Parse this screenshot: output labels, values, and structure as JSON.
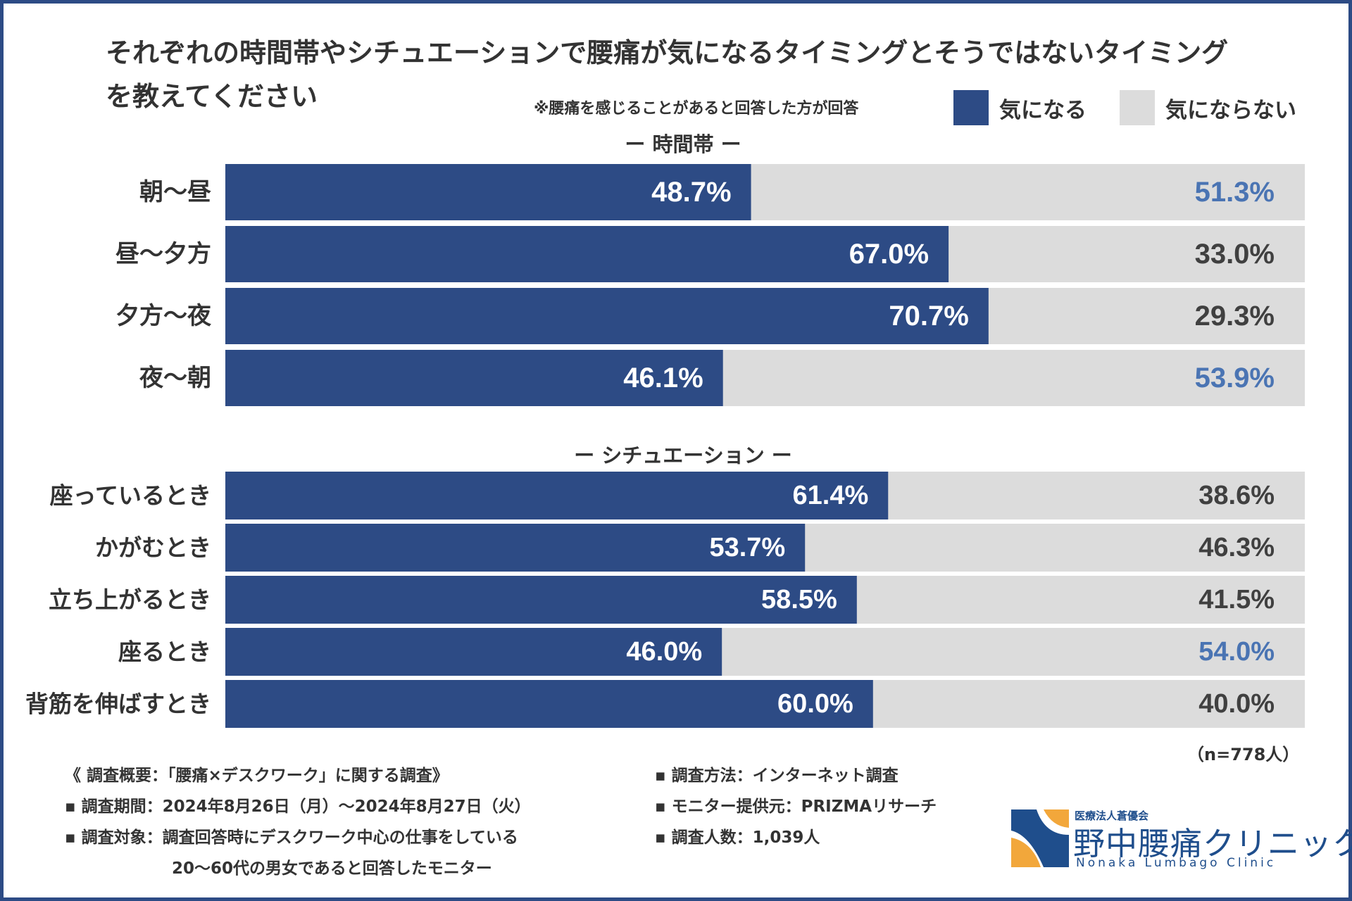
{
  "title": "それぞれの時間帯やシチュエーションで腰痛が気になるタイミングとそうではないタイミングを教えてください",
  "note": "※腰痛を感じることがあると回答した方が回答",
  "legend": [
    {
      "label": "気になる",
      "color": "#2d4b85"
    },
    {
      "label": "気にならない",
      "color": "#dcdcdc"
    }
  ],
  "colors": {
    "primary": "#2d4b85",
    "secondary": "#dcdcdc",
    "label_white": "#ffffff",
    "label_dark": "#404040",
    "label_highlight": "#4a74b3"
  },
  "chart_data": [
    {
      "type": "bar",
      "orientation": "horizontal",
      "stacked": true,
      "section": "ー 時間帯 ー",
      "categories": [
        "朝〜昼",
        "昼〜夕方",
        "夕方〜夜",
        "夜〜朝"
      ],
      "series": [
        {
          "name": "気になる",
          "values": [
            48.7,
            67.0,
            70.7,
            46.1
          ],
          "labels": [
            "48.7%",
            "67.0%",
            "70.7%",
            "46.1%"
          ]
        },
        {
          "name": "気にならない",
          "values": [
            51.3,
            33.0,
            29.3,
            53.9
          ],
          "labels": [
            "51.3%",
            "33.0%",
            "29.3%",
            "53.9%"
          ]
        }
      ],
      "xlim": [
        0,
        100
      ]
    },
    {
      "type": "bar",
      "orientation": "horizontal",
      "stacked": true,
      "section": "ー シチュエーション ー",
      "categories": [
        "座っているとき",
        "かがむとき",
        "立ち上がるとき",
        "座るとき",
        "背筋を伸ばすとき"
      ],
      "series": [
        {
          "name": "気になる",
          "values": [
            61.4,
            53.7,
            58.5,
            46.0,
            60.0
          ],
          "labels": [
            "61.4%",
            "53.7%",
            "58.5%",
            "46.0%",
            "60.0%"
          ]
        },
        {
          "name": "気にならない",
          "values": [
            38.6,
            46.3,
            41.5,
            54.0,
            40.0
          ],
          "labels": [
            "38.6%",
            "46.3%",
            "41.5%",
            "54.0%",
            "40.0%"
          ]
        }
      ],
      "xlim": [
        0,
        100
      ]
    }
  ],
  "sample_note": "（n=778人）",
  "footer": {
    "left": [
      "《 調査概要：「腰痛×デスクワーク」に関する調査》",
      "▪ 調査期間：2024年8月26日（月）〜2024年8月27日（火）",
      "▪ 調査対象：調査回答時にデスクワーク中心の仕事をしている",
      "20〜60代の男女であると回答したモニター"
    ],
    "right": [
      "▪ 調査方法：インターネット調査",
      "▪ モニター提供元：PRIZMAリサーチ",
      "▪ 調査人数：1,039人"
    ]
  },
  "logo": {
    "small": "医療法人蒼優会",
    "name": "野中腰痛クリニック",
    "english": "Nonaka Lumbago Clinic"
  }
}
